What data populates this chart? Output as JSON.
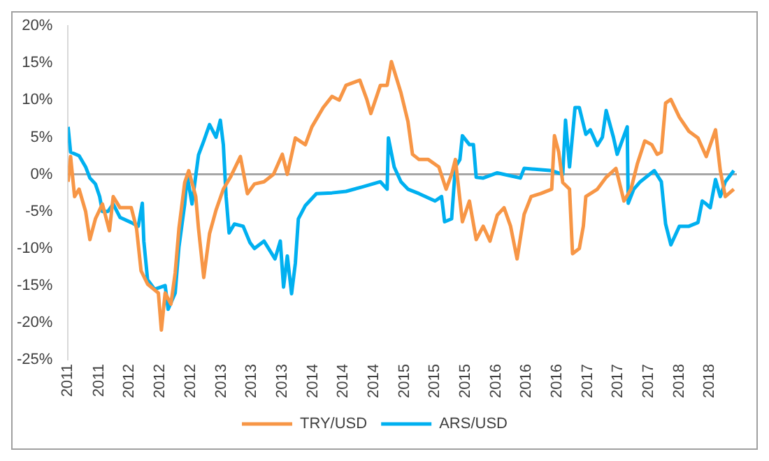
{
  "chart_data": {
    "type": "line",
    "legend": "bottom",
    "grid": false,
    "marker": "none",
    "line_style": "solid",
    "xlim": [
      "2011-05-01",
      "2018-08-18"
    ],
    "xticks": [
      {
        "value": "2011-05-01",
        "label": "2011"
      },
      {
        "value": "2011-09-01",
        "label": "2011"
      },
      {
        "value": "2012-01-01",
        "label": "2012"
      },
      {
        "value": "2012-05-01",
        "label": "2012"
      },
      {
        "value": "2012-09-01",
        "label": "2012"
      },
      {
        "value": "2013-01-01",
        "label": "2013"
      },
      {
        "value": "2013-05-01",
        "label": "2013"
      },
      {
        "value": "2013-09-01",
        "label": "2013"
      },
      {
        "value": "2014-01-01",
        "label": "2014"
      },
      {
        "value": "2014-05-01",
        "label": "2014"
      },
      {
        "value": "2014-09-01",
        "label": "2014"
      },
      {
        "value": "2015-01-01",
        "label": "2015"
      },
      {
        "value": "2015-05-01",
        "label": "2015"
      },
      {
        "value": "2015-09-01",
        "label": "2015"
      },
      {
        "value": "2016-01-01",
        "label": "2016"
      },
      {
        "value": "2016-05-01",
        "label": "2016"
      },
      {
        "value": "2016-09-01",
        "label": "2016"
      },
      {
        "value": "2017-01-01",
        "label": "2017"
      },
      {
        "value": "2017-05-01",
        "label": "2017"
      },
      {
        "value": "2017-09-01",
        "label": "2017"
      },
      {
        "value": "2018-01-01",
        "label": "2018"
      },
      {
        "value": "2018-05-01",
        "label": "2018"
      }
    ],
    "ylim": [
      -25,
      20
    ],
    "yticks": [
      {
        "value": -25,
        "label": "-25%"
      },
      {
        "value": -20,
        "label": "-20%"
      },
      {
        "value": -15,
        "label": "-15%"
      },
      {
        "value": -10,
        "label": "-10%"
      },
      {
        "value": -5,
        "label": "-5%"
      },
      {
        "value": 0,
        "label": "0%"
      },
      {
        "value": 5,
        "label": "5%"
      },
      {
        "value": 10,
        "label": "10%"
      },
      {
        "value": 15,
        "label": "15%"
      },
      {
        "value": 20,
        "label": "20%"
      }
    ],
    "ref_lines": [
      {
        "axis": "y",
        "value": 0,
        "color": "#a6a6a6"
      }
    ],
    "series": [
      {
        "name": "TRY/USD",
        "color": "#f79646",
        "x": [
          "2011-05-01",
          "2011-05-11",
          "2011-05-27",
          "2011-06-14",
          "2011-07-10",
          "2011-07-27",
          "2011-08-18",
          "2011-09-15",
          "2011-10-13",
          "2011-10-28",
          "2011-11-24",
          "2012-01-08",
          "2012-01-29",
          "2012-02-16",
          "2012-03-13",
          "2012-04-25",
          "2012-05-07",
          "2012-05-22",
          "2012-06-14",
          "2012-07-01",
          "2012-07-16",
          "2012-08-08",
          "2012-08-24",
          "2012-09-21",
          "2012-10-02",
          "2012-10-23",
          "2012-11-15",
          "2012-12-11",
          "2013-01-09",
          "2013-02-06",
          "2013-03-18",
          "2013-04-15",
          "2013-05-13",
          "2013-06-20",
          "2013-07-28",
          "2013-09-01",
          "2013-09-21",
          "2013-10-23",
          "2013-12-02",
          "2013-12-28",
          "2014-02-11",
          "2014-03-18",
          "2014-04-16",
          "2014-05-13",
          "2014-07-07",
          "2014-08-04",
          "2014-08-20",
          "2014-09-27",
          "2014-10-24",
          "2014-11-10",
          "2014-12-18",
          "2015-01-15",
          "2015-02-02",
          "2015-02-28",
          "2015-04-06",
          "2015-05-18",
          "2015-06-16",
          "2015-07-08",
          "2015-07-23",
          "2015-08-20",
          "2015-09-17",
          "2015-10-14",
          "2015-11-11",
          "2015-12-08",
          "2016-01-06",
          "2016-02-02",
          "2016-02-28",
          "2016-03-25",
          "2016-04-22",
          "2016-05-20",
          "2016-06-27",
          "2016-08-10",
          "2016-08-21",
          "2016-09-07",
          "2016-09-23",
          "2016-10-20",
          "2016-11-01",
          "2016-11-28",
          "2016-12-14",
          "2016-12-24",
          "2017-02-08",
          "2017-03-15",
          "2017-04-23",
          "2017-05-25",
          "2017-06-22",
          "2017-07-18",
          "2017-08-16",
          "2017-09-13",
          "2017-10-04",
          "2017-10-21",
          "2017-11-07",
          "2017-11-28",
          "2018-01-01",
          "2018-02-08",
          "2018-03-16",
          "2018-04-18",
          "2018-05-25",
          "2018-06-13",
          "2018-07-03",
          "2018-08-06"
        ],
        "values": [
          -1,
          2.4,
          -3,
          -2,
          -5,
          -8.8,
          -6,
          -4,
          -7.6,
          -3,
          -4.5,
          -4.5,
          -7.3,
          -13,
          -14.8,
          -16,
          -21,
          -16,
          -17.5,
          -13.3,
          -7.3,
          -1.1,
          0.5,
          -3,
          -7.3,
          -13.9,
          -8,
          -4.8,
          -2,
          -0.4,
          2.4,
          -2.6,
          -1.3,
          -1,
          0,
          2.7,
          0,
          4.9,
          4,
          6.4,
          9,
          10.5,
          10,
          12,
          12.7,
          10.1,
          8.2,
          12,
          12,
          15.2,
          11,
          7.1,
          2.7,
          2,
          2,
          1,
          -2,
          0,
          2,
          -6.4,
          -3.6,
          -8.8,
          -7,
          -9,
          -5.5,
          -4.5,
          -7,
          -11.4,
          -5.4,
          -3,
          -2.6,
          -2,
          5.2,
          3,
          -1.1,
          -2,
          -10.7,
          -10,
          -7,
          -3,
          -2,
          -0.4,
          0.8,
          -3.6,
          -2,
          1.5,
          4.5,
          4,
          2.7,
          3,
          9.6,
          10.1,
          7.7,
          5.8,
          4.9,
          2.4,
          6,
          0.5,
          -3,
          -2
        ]
      },
      {
        "name": "ARS/USD",
        "color": "#00b0f0",
        "x": [
          "2011-05-01",
          "2011-05-11",
          "2011-06-14",
          "2011-07-10",
          "2011-07-27",
          "2011-08-18",
          "2011-09-04",
          "2011-09-15",
          "2011-10-07",
          "2011-10-28",
          "2011-11-24",
          "2012-01-08",
          "2012-02-05",
          "2012-02-21",
          "2012-02-27",
          "2012-03-13",
          "2012-04-10",
          "2012-05-22",
          "2012-06-03",
          "2012-07-01",
          "2012-07-16",
          "2012-08-08",
          "2012-08-18",
          "2012-09-06",
          "2012-10-02",
          "2012-10-23",
          "2012-11-15",
          "2012-12-11",
          "2012-12-28",
          "2013-01-09",
          "2013-01-20",
          "2013-02-01",
          "2013-02-22",
          "2013-03-29",
          "2013-04-25",
          "2013-05-13",
          "2013-06-20",
          "2013-08-03",
          "2013-08-24",
          "2013-09-06",
          "2013-09-21",
          "2013-10-08",
          "2013-10-23",
          "2013-11-04",
          "2013-12-02",
          "2014-01-15",
          "2014-03-18",
          "2014-05-13",
          "2014-07-17",
          "2014-09-27",
          "2014-10-24",
          "2014-10-29",
          "2014-11-21",
          "2014-12-18",
          "2015-01-15",
          "2015-02-28",
          "2015-05-03",
          "2015-05-29",
          "2015-06-10",
          "2015-07-08",
          "2015-07-23",
          "2015-08-10",
          "2015-08-20",
          "2015-09-17",
          "2015-10-03",
          "2015-10-14",
          "2015-11-11",
          "2016-01-06",
          "2016-04-07",
          "2016-04-22",
          "2016-08-10",
          "2016-09-23",
          "2016-10-04",
          "2016-10-20",
          "2016-11-11",
          "2016-11-28",
          "2016-12-24",
          "2017-01-11",
          "2017-02-08",
          "2017-02-28",
          "2017-03-15",
          "2017-04-13",
          "2017-04-28",
          "2017-06-07",
          "2017-06-11",
          "2017-07-03",
          "2017-07-29",
          "2017-09-23",
          "2017-10-21",
          "2017-11-07",
          "2017-11-28",
          "2018-01-01",
          "2018-02-08",
          "2018-03-16",
          "2018-04-02",
          "2018-04-18",
          "2018-05-04",
          "2018-05-25",
          "2018-06-13",
          "2018-07-03",
          "2018-08-06"
        ],
        "values": [
          6.4,
          3,
          2.5,
          1,
          -0.5,
          -1.3,
          -3,
          -5,
          -5,
          -4,
          -5.8,
          -6.5,
          -7,
          -3.9,
          -9,
          -14.2,
          -15.5,
          -15,
          -18.2,
          -16,
          -9.8,
          -4,
          -0.2,
          -4,
          2.6,
          4.5,
          6.7,
          5,
          7.3,
          4,
          -3,
          -7.9,
          -6.7,
          -7,
          -9.2,
          -10,
          -9,
          -11.4,
          -9,
          -15.2,
          -11,
          -16.1,
          -12,
          -6,
          -4.2,
          -2.6,
          -2.5,
          -2.3,
          -1.7,
          -1,
          -2,
          4.9,
          1,
          -1,
          -2,
          -2.6,
          -3.6,
          -3,
          -6.4,
          -6,
          1,
          2,
          5.2,
          4,
          4,
          -0.4,
          -0.5,
          0.2,
          -0.5,
          0.8,
          0.5,
          0,
          7.3,
          1,
          9,
          9,
          5.4,
          6,
          3.9,
          5,
          8.6,
          5,
          2.7,
          6.4,
          -3.9,
          -2,
          -1,
          0.5,
          -1,
          -6.7,
          -9.5,
          -7,
          -7,
          -6.5,
          -3.6,
          -4,
          -4.5,
          -0.7,
          -3,
          -1,
          0.5
        ]
      }
    ]
  }
}
